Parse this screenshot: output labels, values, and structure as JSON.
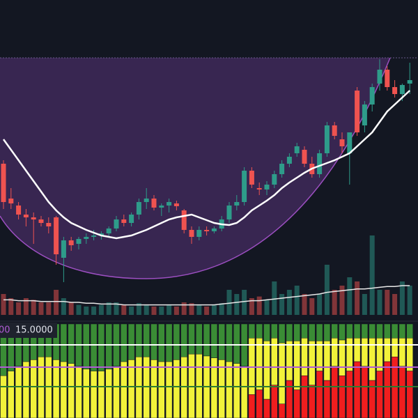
{
  "chart_data": [
    {
      "type": "candlestick",
      "ylim": [
        0,
        340
      ],
      "up_color": "#2e9c8a",
      "down_color": "#ef5350",
      "open": [
        185,
        135,
        125,
        112,
        108,
        105,
        100,
        108,
        50,
        75,
        70,
        77,
        80,
        82,
        85,
        92,
        105,
        100,
        112,
        130,
        135,
        122,
        125,
        128,
        118,
        90,
        80,
        90,
        88,
        92,
        105,
        125,
        130,
        175,
        150,
        148,
        155,
        170,
        185,
        200,
        205,
        185,
        170,
        200,
        240,
        220,
        200,
        290,
        240,
        270,
        300,
        320,
        295,
        285,
        300
      ],
      "high": [
        190,
        150,
        130,
        120,
        115,
        110,
        108,
        110,
        80,
        80,
        80,
        85,
        90,
        88,
        95,
        110,
        112,
        115,
        135,
        150,
        140,
        128,
        135,
        132,
        120,
        95,
        95,
        95,
        95,
        110,
        130,
        140,
        180,
        180,
        158,
        160,
        175,
        190,
        200,
        215,
        210,
        195,
        205,
        245,
        245,
        230,
        230,
        295,
        275,
        300,
        335,
        325,
        305,
        300,
        330
      ],
      "low": [
        120,
        120,
        105,
        95,
        70,
        95,
        85,
        40,
        15,
        60,
        62,
        70,
        75,
        76,
        80,
        88,
        95,
        95,
        105,
        120,
        118,
        110,
        115,
        118,
        85,
        70,
        75,
        82,
        85,
        88,
        100,
        118,
        125,
        150,
        140,
        140,
        150,
        165,
        180,
        195,
        180,
        165,
        165,
        195,
        220,
        200,
        155,
        225,
        230,
        260,
        290,
        290,
        280,
        275,
        285
      ],
      "close": [
        130,
        128,
        112,
        108,
        105,
        100,
        95,
        55,
        75,
        68,
        77,
        80,
        82,
        85,
        92,
        105,
        100,
        112,
        130,
        135,
        122,
        125,
        130,
        124,
        90,
        80,
        90,
        88,
        92,
        105,
        125,
        130,
        175,
        155,
        148,
        155,
        170,
        185,
        195,
        210,
        185,
        170,
        200,
        240,
        225,
        210,
        230,
        230,
        270,
        295,
        320,
        295,
        285,
        298,
        305
      ],
      "ma": {
        "color": "#ffffff",
        "values": [
          220,
          205,
          190,
          175,
          160,
          145,
          130,
          118,
          108,
          100,
          95,
          90,
          86,
          82,
          80,
          78,
          80,
          82,
          86,
          90,
          95,
          100,
          105,
          108,
          110,
          112,
          108,
          104,
          100,
          98,
          97,
          100,
          108,
          118,
          125,
          132,
          140,
          150,
          158,
          165,
          172,
          178,
          182,
          186,
          190,
          195,
          200,
          210,
          220,
          230,
          245,
          260,
          270,
          280,
          290
        ]
      },
      "cup_color": "#9c4fc1"
    },
    {
      "type": "volume",
      "ylim": [
        0,
        100
      ],
      "values": [
        25,
        20,
        15,
        20,
        18,
        15,
        15,
        30,
        20,
        15,
        12,
        10,
        10,
        12,
        15,
        15,
        12,
        10,
        14,
        12,
        10,
        10,
        12,
        10,
        15,
        14,
        12,
        10,
        12,
        14,
        30,
        25,
        30,
        20,
        22,
        18,
        40,
        25,
        30,
        35,
        25,
        20,
        25,
        60,
        30,
        35,
        45,
        40,
        25,
        95,
        30,
        30,
        25,
        40,
        35
      ],
      "ma": {
        "color": "#e8e8e8",
        "values": [
          18,
          18,
          17,
          17,
          17,
          16,
          16,
          16,
          16,
          15,
          15,
          14,
          14,
          13,
          13,
          13,
          12,
          12,
          12,
          12,
          12,
          12,
          12,
          12,
          12,
          12,
          12,
          12,
          12,
          13,
          14,
          15,
          16,
          17,
          17,
          18,
          19,
          20,
          21,
          22,
          23,
          24,
          25,
          27,
          28,
          29,
          30,
          31,
          31,
          32,
          33,
          34,
          34,
          35,
          35
        ]
      }
    },
    {
      "type": "stacked_bar",
      "ylim": [
        0,
        100
      ],
      "series": [
        {
          "color": "#f01e1e",
          "values": [
            0,
            0,
            0,
            0,
            0,
            0,
            0,
            0,
            0,
            0,
            0,
            0,
            0,
            0,
            0,
            0,
            0,
            0,
            0,
            0,
            0,
            0,
            0,
            0,
            0,
            0,
            0,
            0,
            0,
            0,
            0,
            0,
            0,
            25,
            30,
            20,
            35,
            15,
            40,
            30,
            45,
            35,
            50,
            40,
            55,
            45,
            50,
            60,
            55,
            40,
            50,
            60,
            65,
            55,
            50
          ]
        },
        {
          "color": "#f2f23a",
          "values": [
            45,
            50,
            55,
            60,
            62,
            65,
            65,
            62,
            60,
            58,
            55,
            52,
            50,
            50,
            52,
            55,
            60,
            62,
            65,
            65,
            62,
            60,
            60,
            62,
            65,
            68,
            68,
            66,
            64,
            62,
            60,
            58,
            55,
            60,
            55,
            62,
            50,
            65,
            42,
            52,
            40,
            47,
            32,
            42,
            30,
            38,
            35,
            25,
            30,
            45,
            35,
            25,
            20,
            30,
            35
          ]
        },
        {
          "color": "#3a8c35",
          "values": [
            55,
            50,
            45,
            40,
            38,
            35,
            35,
            38,
            40,
            42,
            45,
            48,
            50,
            50,
            48,
            45,
            40,
            38,
            35,
            35,
            38,
            40,
            40,
            38,
            35,
            32,
            32,
            34,
            36,
            38,
            40,
            42,
            45,
            15,
            15,
            18,
            15,
            20,
            18,
            18,
            15,
            18,
            18,
            18,
            15,
            17,
            15,
            15,
            15,
            15,
            15,
            15,
            15,
            15,
            15
          ]
        }
      ],
      "annotations": [
        {
          "text": "00",
          "color": "#b05cd6"
        },
        {
          "text": "15.0000",
          "color": "#e0e3eb"
        }
      ]
    }
  ]
}
